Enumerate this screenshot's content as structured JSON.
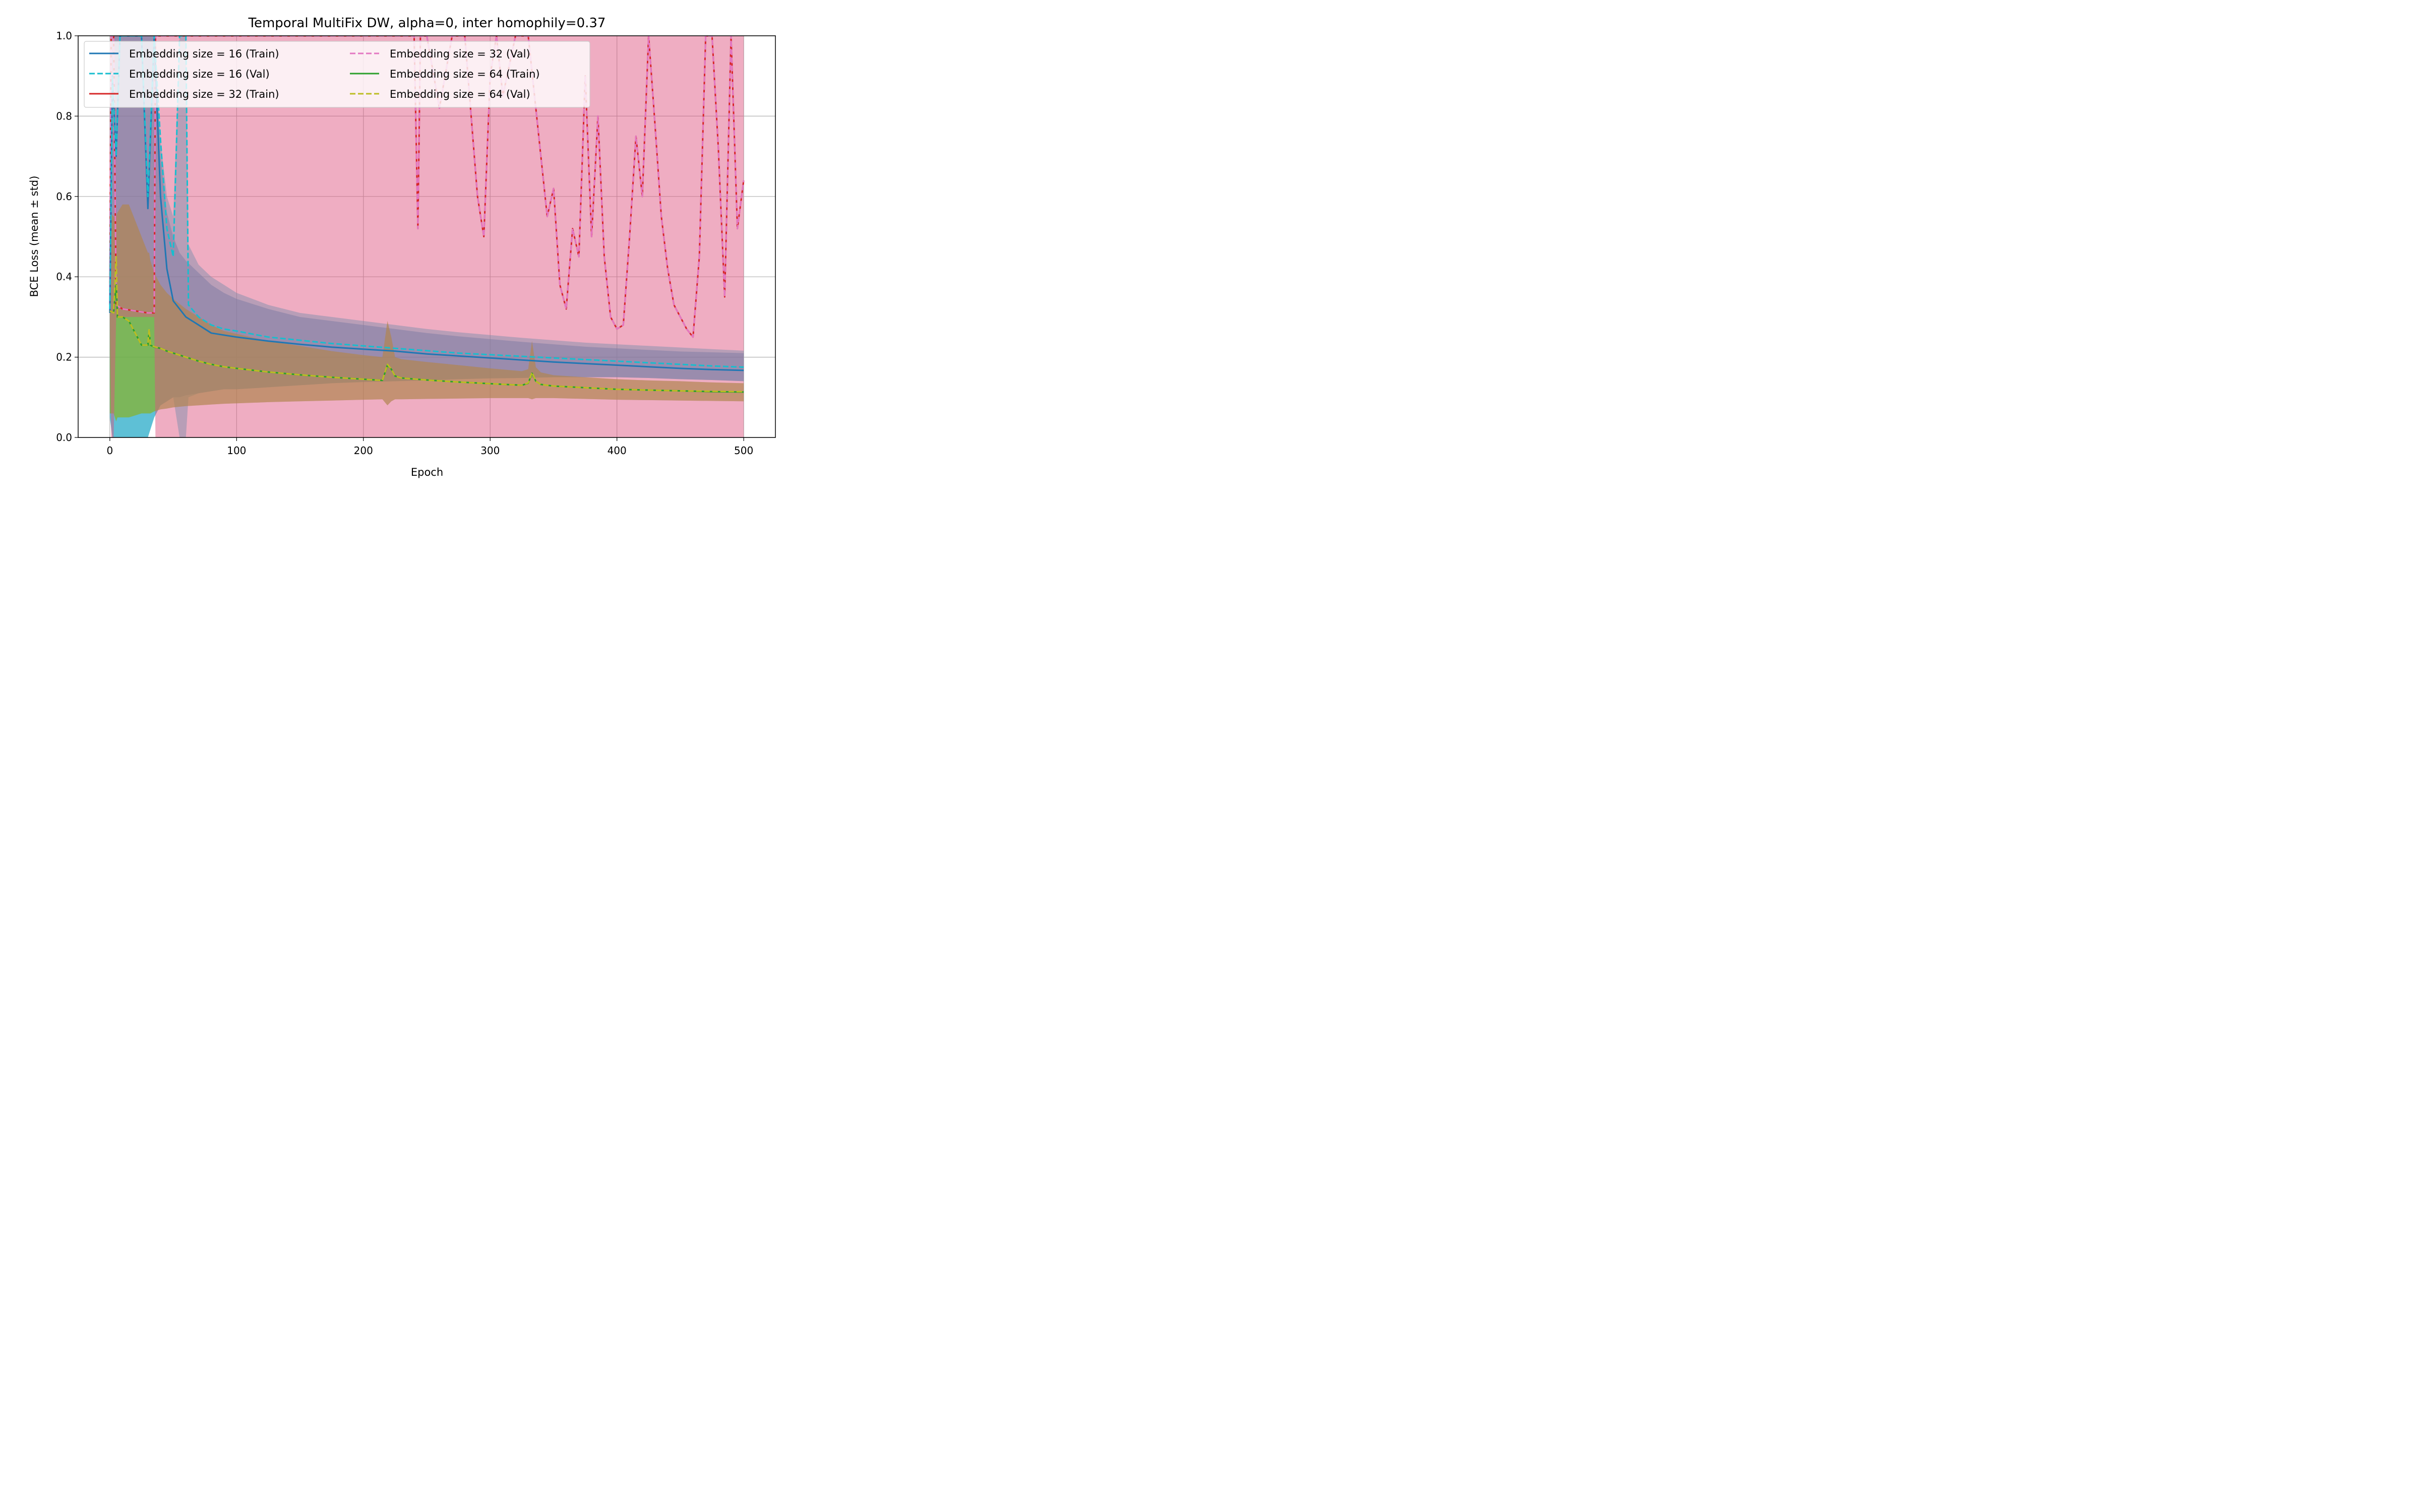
{
  "chart_data": {
    "type": "line",
    "title": "Temporal MultiFix DW, alpha=0, inter homophily=0.37",
    "xlabel": "Epoch",
    "ylabel": "BCE Loss (mean ± std)",
    "xlim": [
      -25,
      525
    ],
    "ylim": [
      0,
      1
    ],
    "xticks": [
      0,
      100,
      200,
      300,
      400,
      500
    ],
    "yticks": [
      0.0,
      0.2,
      0.4,
      0.6,
      0.8,
      1.0
    ],
    "xtick_labels": [
      "0",
      "100",
      "200",
      "300",
      "400",
      "500"
    ],
    "ytick_labels": [
      "0.0",
      "0.2",
      "0.4",
      "0.6",
      "0.8",
      "1.0"
    ],
    "grid": true,
    "legend_position": "top-left, two columns",
    "series": [
      {
        "name": "Embedding size = 16 (Train)",
        "color": "#1f77b4",
        "style": "solid",
        "x": [
          0,
          2,
          5,
          8,
          15,
          25,
          30,
          35,
          40,
          45,
          50,
          55,
          60,
          70,
          80,
          90,
          100,
          125,
          150,
          175,
          200,
          225,
          250,
          275,
          300,
          325,
          350,
          375,
          400,
          425,
          450,
          475,
          500
        ],
        "y": [
          0.31,
          0.9,
          0.7,
          1.0,
          1.0,
          1.0,
          0.57,
          1.0,
          0.6,
          0.42,
          0.34,
          0.32,
          0.3,
          0.28,
          0.26,
          0.255,
          0.25,
          0.24,
          0.232,
          0.225,
          0.22,
          0.215,
          0.208,
          0.203,
          0.198,
          0.193,
          0.188,
          0.184,
          0.18,
          0.176,
          0.172,
          0.169,
          0.167
        ],
        "band_lower": [
          0.05,
          0.0,
          0.0,
          0.0,
          0.0,
          0.0,
          0.0,
          0.05,
          0.08,
          0.09,
          0.1,
          0.1,
          0.105,
          0.11,
          0.115,
          0.12,
          0.12,
          0.125,
          0.13,
          0.135,
          0.138,
          0.14,
          0.142,
          0.145,
          0.147,
          0.148,
          0.15,
          0.15,
          0.15,
          0.148,
          0.145,
          0.143,
          0.14
        ],
        "band_upper": [
          0.55,
          1.0,
          1.0,
          1.0,
          1.0,
          1.0,
          1.0,
          1.0,
          0.7,
          0.56,
          0.5,
          0.46,
          0.44,
          0.41,
          0.38,
          0.36,
          0.345,
          0.32,
          0.3,
          0.29,
          0.28,
          0.27,
          0.26,
          0.252,
          0.245,
          0.238,
          0.232,
          0.226,
          0.222,
          0.218,
          0.214,
          0.212,
          0.21
        ]
      },
      {
        "name": "Embedding size = 16 (Val)",
        "color": "#17becf",
        "style": "dashed",
        "x": [
          0,
          2,
          5,
          8,
          15,
          25,
          30,
          35,
          40,
          45,
          50,
          55,
          58,
          60,
          62,
          70,
          80,
          90,
          100,
          125,
          150,
          175,
          200,
          225,
          250,
          275,
          300,
          325,
          350,
          375,
          400,
          425,
          450,
          475,
          500
        ],
        "y": [
          0.32,
          0.9,
          0.7,
          1.0,
          1.0,
          1.0,
          0.6,
          1.0,
          0.74,
          0.52,
          0.45,
          1.0,
          1.0,
          1.0,
          0.33,
          0.3,
          0.28,
          0.27,
          0.265,
          0.25,
          0.242,
          0.234,
          0.228,
          0.222,
          0.216,
          0.21,
          0.206,
          0.202,
          0.198,
          0.194,
          0.19,
          0.186,
          0.182,
          0.178,
          0.175
        ],
        "band_lower": [
          0.05,
          0.0,
          0.0,
          0.0,
          0.0,
          0.0,
          0.0,
          0.05,
          0.08,
          0.09,
          0.1,
          0.0,
          0.0,
          0.0,
          0.1,
          0.11,
          0.115,
          0.12,
          0.12,
          0.125,
          0.13,
          0.135,
          0.138,
          0.14,
          0.142,
          0.145,
          0.147,
          0.148,
          0.15,
          0.15,
          0.15,
          0.148,
          0.145,
          0.143,
          0.14
        ],
        "band_upper": [
          0.55,
          1.0,
          1.0,
          1.0,
          1.0,
          1.0,
          1.0,
          1.0,
          0.74,
          0.6,
          0.55,
          1.0,
          1.0,
          1.0,
          0.48,
          0.43,
          0.4,
          0.38,
          0.36,
          0.33,
          0.31,
          0.3,
          0.29,
          0.28,
          0.27,
          0.262,
          0.255,
          0.248,
          0.242,
          0.236,
          0.232,
          0.228,
          0.224,
          0.22,
          0.216
        ]
      },
      {
        "name": "Embedding size = 32 (Train)",
        "color": "#d62728",
        "style": "solid",
        "x": [
          0,
          1,
          3,
          5,
          10,
          20,
          30,
          35,
          36,
          40,
          50,
          100,
          150,
          200,
          240,
          243,
          245,
          250,
          260,
          270,
          280,
          285,
          290,
          295,
          300,
          305,
          310,
          320,
          330,
          340,
          345,
          350,
          355,
          360,
          365,
          370,
          375,
          380,
          385,
          390,
          395,
          400,
          405,
          410,
          415,
          420,
          425,
          430,
          435,
          440,
          445,
          450,
          455,
          460,
          465,
          470,
          475,
          480,
          485,
          490,
          495,
          500
        ],
        "y": [
          0.33,
          1.0,
          1.0,
          0.33,
          0.32,
          0.315,
          0.31,
          0.31,
          1.0,
          1.0,
          1.0,
          1.0,
          1.0,
          1.0,
          1.0,
          0.52,
          1.0,
          1.0,
          0.82,
          1.0,
          1.0,
          0.8,
          0.6,
          0.5,
          0.9,
          1.0,
          0.85,
          1.0,
          1.0,
          0.7,
          0.55,
          0.62,
          0.38,
          0.32,
          0.52,
          0.45,
          0.9,
          0.5,
          0.8,
          0.45,
          0.3,
          0.27,
          0.28,
          0.5,
          0.75,
          0.6,
          1.0,
          0.78,
          0.55,
          0.42,
          0.33,
          0.3,
          0.27,
          0.25,
          0.45,
          1.0,
          1.0,
          0.72,
          0.35,
          1.0,
          0.52,
          0.64
        ],
        "band_lower": [
          0.31,
          0.0,
          0.0,
          0.3,
          0.3,
          0.3,
          0.3,
          0.3,
          0.0,
          0.0,
          0.0,
          0.0,
          0.0,
          0.0,
          0.0,
          0.0,
          0.0,
          0.0,
          0.0,
          0.0,
          0.0,
          0.0,
          0.0,
          0.0,
          0.0,
          0.0,
          0.0,
          0.0,
          0.0,
          0.0,
          0.0,
          0.0,
          0.0,
          0.0,
          0.0,
          0.0,
          0.0,
          0.0,
          0.0,
          0.0,
          0.0,
          0.0,
          0.0,
          0.0,
          0.0,
          0.0,
          0.0,
          0.0,
          0.0,
          0.0,
          0.0,
          0.0,
          0.0,
          0.0,
          0.0,
          0.0,
          0.0,
          0.0,
          0.0,
          0.0,
          0.0,
          0.0
        ],
        "band_upper": [
          0.35,
          1.0,
          1.0,
          1.0,
          1.0,
          1.0,
          1.0,
          1.0,
          1.0,
          1.0,
          1.0,
          1.0,
          1.0,
          1.0,
          1.0,
          1.0,
          1.0,
          1.0,
          1.0,
          1.0,
          1.0,
          1.0,
          1.0,
          1.0,
          1.0,
          1.0,
          1.0,
          1.0,
          1.0,
          1.0,
          1.0,
          1.0,
          1.0,
          1.0,
          1.0,
          1.0,
          1.0,
          1.0,
          1.0,
          1.0,
          1.0,
          1.0,
          1.0,
          1.0,
          1.0,
          1.0,
          1.0,
          1.0,
          1.0,
          1.0,
          1.0,
          1.0,
          1.0,
          1.0,
          1.0,
          1.0,
          1.0,
          1.0,
          1.0,
          1.0,
          1.0,
          1.0
        ]
      },
      {
        "name": "Embedding size = 32 (Val)",
        "color": "#e377c2",
        "style": "dashed",
        "x": [
          0,
          1,
          3,
          5,
          10,
          20,
          30,
          35,
          36,
          40,
          50,
          100,
          150,
          200,
          240,
          243,
          245,
          250,
          260,
          270,
          280,
          285,
          290,
          295,
          300,
          305,
          310,
          320,
          330,
          340,
          345,
          350,
          355,
          360,
          365,
          370,
          375,
          380,
          385,
          390,
          395,
          400,
          405,
          410,
          415,
          420,
          425,
          430,
          435,
          440,
          445,
          450,
          455,
          460,
          465,
          470,
          475,
          480,
          485,
          490,
          495,
          500
        ],
        "y": [
          0.33,
          1.0,
          1.0,
          0.33,
          0.32,
          0.315,
          0.31,
          0.31,
          1.0,
          1.0,
          1.0,
          1.0,
          1.0,
          1.0,
          1.0,
          0.52,
          1.0,
          1.0,
          0.82,
          1.0,
          1.0,
          0.8,
          0.6,
          0.5,
          0.9,
          1.0,
          0.85,
          1.0,
          1.0,
          0.7,
          0.55,
          0.62,
          0.38,
          0.32,
          0.52,
          0.45,
          0.9,
          0.5,
          0.8,
          0.45,
          0.3,
          0.27,
          0.28,
          0.5,
          0.75,
          0.6,
          1.0,
          0.78,
          0.55,
          0.42,
          0.33,
          0.3,
          0.27,
          0.25,
          0.45,
          1.0,
          1.0,
          0.72,
          0.35,
          1.0,
          0.52,
          0.64
        ],
        "band_lower": [
          0.31,
          0.0,
          0.0,
          0.3,
          0.3,
          0.3,
          0.3,
          0.3,
          0.0,
          0.0,
          0.0,
          0.0,
          0.0,
          0.0,
          0.0,
          0.0,
          0.0,
          0.0,
          0.0,
          0.0,
          0.0,
          0.0,
          0.0,
          0.0,
          0.0,
          0.0,
          0.0,
          0.0,
          0.0,
          0.0,
          0.0,
          0.0,
          0.0,
          0.0,
          0.0,
          0.0,
          0.0,
          0.0,
          0.0,
          0.0,
          0.0,
          0.0,
          0.0,
          0.0,
          0.0,
          0.0,
          0.0,
          0.0,
          0.0,
          0.0,
          0.0,
          0.0,
          0.0,
          0.0,
          0.0,
          0.0,
          0.0,
          0.0,
          0.0,
          0.0,
          0.0,
          0.0
        ],
        "band_upper": [
          0.35,
          1.0,
          1.0,
          1.0,
          1.0,
          1.0,
          1.0,
          1.0,
          1.0,
          1.0,
          1.0,
          1.0,
          1.0,
          1.0,
          1.0,
          1.0,
          1.0,
          1.0,
          1.0,
          1.0,
          1.0,
          1.0,
          1.0,
          1.0,
          1.0,
          1.0,
          1.0,
          1.0,
          1.0,
          1.0,
          1.0,
          1.0,
          1.0,
          1.0,
          1.0,
          1.0,
          1.0,
          1.0,
          1.0,
          1.0,
          1.0,
          1.0,
          1.0,
          1.0,
          1.0,
          1.0,
          1.0,
          1.0,
          1.0,
          1.0,
          1.0,
          1.0,
          1.0,
          1.0,
          1.0,
          1.0,
          1.0,
          1.0,
          1.0,
          1.0,
          1.0,
          1.0
        ]
      },
      {
        "name": "Embedding size = 64 (Train)",
        "color": "#2ca02c",
        "style": "solid",
        "x": [
          0,
          3,
          5,
          6,
          8,
          10,
          15,
          20,
          25,
          30,
          31,
          32,
          35,
          40,
          45,
          50,
          60,
          70,
          80,
          90,
          100,
          125,
          150,
          175,
          200,
          215,
          219,
          222,
          225,
          230,
          250,
          275,
          300,
          325,
          330,
          333,
          336,
          340,
          350,
          375,
          400,
          425,
          450,
          475,
          500
        ],
        "y": [
          0.315,
          0.31,
          0.38,
          0.3,
          0.3,
          0.3,
          0.29,
          0.26,
          0.23,
          0.23,
          0.265,
          0.23,
          0.225,
          0.222,
          0.215,
          0.21,
          0.2,
          0.19,
          0.182,
          0.176,
          0.172,
          0.163,
          0.156,
          0.15,
          0.145,
          0.142,
          0.18,
          0.17,
          0.153,
          0.148,
          0.143,
          0.138,
          0.134,
          0.13,
          0.135,
          0.16,
          0.14,
          0.132,
          0.128,
          0.124,
          0.12,
          0.118,
          0.116,
          0.114,
          0.113
        ],
        "band_lower": [
          0.06,
          0.06,
          0.04,
          0.05,
          0.05,
          0.05,
          0.05,
          0.055,
          0.06,
          0.06,
          0.06,
          0.06,
          0.065,
          0.07,
          0.072,
          0.075,
          0.078,
          0.08,
          0.082,
          0.084,
          0.085,
          0.088,
          0.09,
          0.092,
          0.094,
          0.095,
          0.08,
          0.09,
          0.095,
          0.095,
          0.096,
          0.097,
          0.098,
          0.098,
          0.098,
          0.095,
          0.098,
          0.098,
          0.098,
          0.096,
          0.094,
          0.093,
          0.092,
          0.091,
          0.09
        ],
        "band_upper": [
          0.56,
          0.55,
          0.55,
          0.56,
          0.57,
          0.58,
          0.58,
          0.54,
          0.5,
          0.46,
          0.46,
          0.44,
          0.41,
          0.38,
          0.36,
          0.345,
          0.32,
          0.3,
          0.28,
          0.265,
          0.258,
          0.24,
          0.228,
          0.215,
          0.205,
          0.2,
          0.29,
          0.25,
          0.2,
          0.195,
          0.188,
          0.18,
          0.172,
          0.165,
          0.17,
          0.24,
          0.175,
          0.162,
          0.155,
          0.15,
          0.145,
          0.142,
          0.14,
          0.137,
          0.135
        ]
      },
      {
        "name": "Embedding size = 64 (Val)",
        "color": "#bcbd22",
        "style": "dashed",
        "x": [
          0,
          3,
          5,
          6,
          8,
          10,
          15,
          20,
          25,
          30,
          31,
          32,
          35,
          40,
          45,
          50,
          60,
          70,
          80,
          90,
          100,
          125,
          150,
          175,
          200,
          215,
          219,
          222,
          225,
          230,
          250,
          275,
          300,
          325,
          330,
          333,
          336,
          340,
          350,
          375,
          400,
          425,
          450,
          475,
          500
        ],
        "y": [
          0.315,
          0.31,
          0.45,
          0.3,
          0.3,
          0.3,
          0.29,
          0.26,
          0.23,
          0.23,
          0.27,
          0.23,
          0.226,
          0.222,
          0.215,
          0.21,
          0.2,
          0.19,
          0.182,
          0.176,
          0.172,
          0.163,
          0.156,
          0.15,
          0.145,
          0.142,
          0.182,
          0.17,
          0.153,
          0.148,
          0.143,
          0.138,
          0.134,
          0.13,
          0.136,
          0.162,
          0.14,
          0.132,
          0.128,
          0.124,
          0.12,
          0.118,
          0.116,
          0.115,
          0.114
        ],
        "band_lower": [
          0.06,
          0.06,
          0.04,
          0.05,
          0.05,
          0.05,
          0.05,
          0.055,
          0.06,
          0.06,
          0.06,
          0.06,
          0.065,
          0.07,
          0.072,
          0.075,
          0.078,
          0.08,
          0.082,
          0.084,
          0.085,
          0.088,
          0.09,
          0.092,
          0.094,
          0.095,
          0.08,
          0.09,
          0.095,
          0.095,
          0.096,
          0.097,
          0.098,
          0.098,
          0.098,
          0.095,
          0.098,
          0.098,
          0.098,
          0.096,
          0.094,
          0.093,
          0.092,
          0.091,
          0.09
        ],
        "band_upper": [
          0.56,
          0.55,
          0.55,
          0.56,
          0.57,
          0.58,
          0.58,
          0.54,
          0.5,
          0.46,
          0.46,
          0.44,
          0.41,
          0.38,
          0.36,
          0.345,
          0.32,
          0.3,
          0.28,
          0.265,
          0.258,
          0.24,
          0.228,
          0.215,
          0.205,
          0.2,
          0.29,
          0.25,
          0.2,
          0.195,
          0.188,
          0.18,
          0.172,
          0.165,
          0.17,
          0.24,
          0.175,
          0.162,
          0.155,
          0.15,
          0.145,
          0.142,
          0.14,
          0.137,
          0.135
        ]
      }
    ]
  }
}
